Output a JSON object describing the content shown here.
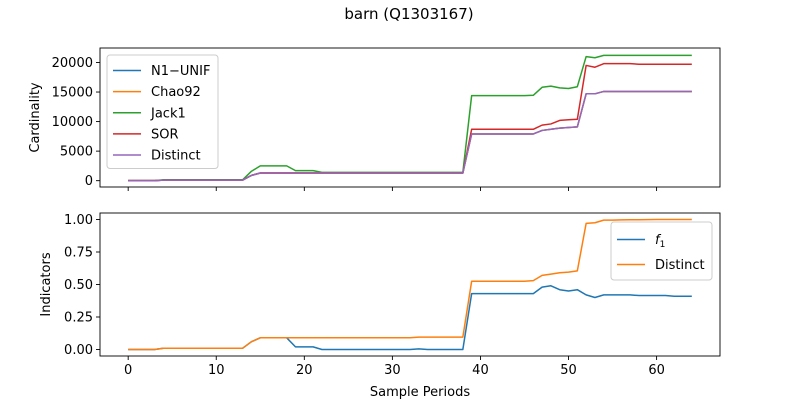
{
  "figure": {
    "title": "barn (Q1303167)"
  },
  "chart_data": [
    {
      "type": "line",
      "ylabel": "Cardinality",
      "xlabel": "",
      "xlim": [
        -3.2,
        67.2
      ],
      "ylim": [
        -1070,
        22450
      ],
      "xticks": [
        0,
        10,
        20,
        30,
        40,
        50,
        60
      ],
      "yticks": [
        0,
        5000,
        10000,
        15000,
        20000
      ],
      "grid": false,
      "legend_position": "top-left",
      "series": [
        {
          "name": "N1−UNIF",
          "color": "#1f77b4",
          "x": [
            0,
            1,
            2,
            3,
            4,
            5,
            6,
            7,
            8,
            9,
            10,
            11,
            12,
            13,
            14,
            15,
            16,
            17,
            18,
            19,
            20,
            21,
            22,
            23,
            24,
            25,
            26,
            27,
            28,
            29,
            30,
            31,
            32,
            33,
            34,
            35,
            36,
            37,
            38,
            39,
            40,
            41,
            42,
            43,
            44,
            45,
            46,
            47,
            48,
            49,
            50,
            51,
            52,
            53,
            54,
            55,
            56,
            57,
            58,
            59,
            60,
            61,
            62,
            63,
            64
          ],
          "values": [
            0,
            0,
            0,
            0,
            100,
            100,
            100,
            100,
            100,
            100,
            100,
            100,
            100,
            100,
            900,
            1300,
            1300,
            1300,
            1300,
            1300,
            1300,
            1300,
            1300,
            1300,
            1300,
            1300,
            1300,
            1300,
            1300,
            1300,
            1300,
            1300,
            1300,
            1300,
            1300,
            1300,
            1300,
            1300,
            1300,
            7900,
            7900,
            7900,
            7900,
            7900,
            7900,
            7900,
            7900,
            8500,
            8700,
            8900,
            9000,
            9100,
            14700,
            14700,
            15100,
            15100,
            15100,
            15100,
            15100,
            15100,
            15100,
            15100,
            15100,
            15100,
            15100
          ]
        },
        {
          "name": "Chao92",
          "color": "#ff7f0e",
          "x": [
            0,
            1,
            2,
            3,
            4,
            5,
            6,
            7,
            8,
            9,
            10,
            11,
            12,
            13,
            14,
            15,
            16,
            17,
            18,
            19,
            20,
            21,
            22,
            23,
            24,
            25,
            26,
            27,
            28,
            29,
            30,
            31,
            32,
            33,
            34,
            35,
            36,
            37,
            38,
            39,
            40,
            41,
            42,
            43,
            44,
            45,
            46,
            47,
            48,
            49,
            50,
            51,
            52,
            53,
            54,
            55,
            56,
            57,
            58,
            59,
            60,
            61,
            62,
            63,
            64
          ],
          "values": [
            0,
            0,
            0,
            0,
            100,
            100,
            100,
            100,
            100,
            100,
            100,
            100,
            100,
            100,
            900,
            1300,
            1300,
            1300,
            1300,
            1300,
            1300,
            1300,
            1300,
            1300,
            1300,
            1300,
            1300,
            1300,
            1300,
            1300,
            1300,
            1300,
            1300,
            1300,
            1300,
            1300,
            1300,
            1300,
            1300,
            7900,
            7900,
            7900,
            7900,
            7900,
            7900,
            7900,
            7900,
            8500,
            8700,
            8900,
            9000,
            9100,
            14700,
            14700,
            15100,
            15100,
            15100,
            15100,
            15100,
            15100,
            15100,
            15100,
            15100,
            15100,
            15100
          ]
        },
        {
          "name": "Jack1",
          "color": "#2ca02c",
          "x": [
            0,
            1,
            2,
            3,
            4,
            5,
            6,
            7,
            8,
            9,
            10,
            11,
            12,
            13,
            14,
            15,
            16,
            17,
            18,
            19,
            20,
            21,
            22,
            23,
            24,
            25,
            26,
            27,
            28,
            29,
            30,
            31,
            32,
            33,
            34,
            35,
            36,
            37,
            38,
            39,
            40,
            41,
            42,
            43,
            44,
            45,
            46,
            47,
            48,
            49,
            50,
            51,
            52,
            53,
            54,
            55,
            56,
            57,
            58,
            59,
            60,
            61,
            62,
            63,
            64
          ],
          "values": [
            0,
            0,
            0,
            0,
            150,
            150,
            150,
            150,
            150,
            150,
            150,
            150,
            150,
            150,
            1600,
            2500,
            2500,
            2500,
            2500,
            1700,
            1700,
            1700,
            1400,
            1400,
            1400,
            1400,
            1400,
            1400,
            1400,
            1400,
            1400,
            1400,
            1400,
            1400,
            1400,
            1400,
            1400,
            1400,
            1400,
            14400,
            14400,
            14400,
            14400,
            14400,
            14400,
            14400,
            14450,
            15800,
            16000,
            15700,
            15600,
            15900,
            21000,
            20800,
            21200,
            21200,
            21200,
            21200,
            21200,
            21200,
            21200,
            21200,
            21200,
            21200,
            21200
          ]
        },
        {
          "name": "SOR",
          "color": "#d62728",
          "x": [
            0,
            1,
            2,
            3,
            4,
            5,
            6,
            7,
            8,
            9,
            10,
            11,
            12,
            13,
            14,
            15,
            16,
            17,
            18,
            19,
            20,
            21,
            22,
            23,
            24,
            25,
            26,
            27,
            28,
            29,
            30,
            31,
            32,
            33,
            34,
            35,
            36,
            37,
            38,
            39,
            40,
            41,
            42,
            43,
            44,
            45,
            46,
            47,
            48,
            49,
            50,
            51,
            52,
            53,
            54,
            55,
            56,
            57,
            58,
            59,
            60,
            61,
            62,
            63,
            64
          ],
          "values": [
            0,
            0,
            0,
            0,
            100,
            100,
            100,
            100,
            100,
            100,
            100,
            100,
            100,
            100,
            900,
            1300,
            1300,
            1300,
            1300,
            1300,
            1300,
            1300,
            1300,
            1300,
            1300,
            1300,
            1300,
            1300,
            1300,
            1300,
            1300,
            1300,
            1300,
            1300,
            1300,
            1300,
            1300,
            1300,
            1300,
            8700,
            8700,
            8700,
            8700,
            8700,
            8700,
            8700,
            8700,
            9400,
            9600,
            10200,
            10300,
            10400,
            19500,
            19200,
            19800,
            19800,
            19800,
            19800,
            19700,
            19700,
            19700,
            19700,
            19700,
            19700,
            19700
          ]
        },
        {
          "name": "Distinct",
          "color": "#9467bd",
          "x": [
            0,
            1,
            2,
            3,
            4,
            5,
            6,
            7,
            8,
            9,
            10,
            11,
            12,
            13,
            14,
            15,
            16,
            17,
            18,
            19,
            20,
            21,
            22,
            23,
            24,
            25,
            26,
            27,
            28,
            29,
            30,
            31,
            32,
            33,
            34,
            35,
            36,
            37,
            38,
            39,
            40,
            41,
            42,
            43,
            44,
            45,
            46,
            47,
            48,
            49,
            50,
            51,
            52,
            53,
            54,
            55,
            56,
            57,
            58,
            59,
            60,
            61,
            62,
            63,
            64
          ],
          "values": [
            0,
            0,
            0,
            0,
            100,
            100,
            100,
            100,
            100,
            100,
            100,
            100,
            100,
            100,
            900,
            1300,
            1300,
            1300,
            1300,
            1300,
            1300,
            1300,
            1300,
            1300,
            1300,
            1300,
            1300,
            1300,
            1300,
            1300,
            1300,
            1300,
            1300,
            1300,
            1300,
            1300,
            1300,
            1300,
            1300,
            7900,
            7900,
            7900,
            7900,
            7900,
            7900,
            7900,
            7900,
            8500,
            8700,
            8900,
            9000,
            9100,
            14700,
            14700,
            15100,
            15100,
            15100,
            15100,
            15100,
            15100,
            15100,
            15100,
            15100,
            15100,
            15100
          ]
        }
      ]
    },
    {
      "type": "line",
      "ylabel": "Indicators",
      "xlabel": "Sample Periods",
      "xlim": [
        -3.2,
        67.2
      ],
      "ylim": [
        -0.05,
        1.05
      ],
      "xticks": [
        0,
        10,
        20,
        30,
        40,
        50,
        60
      ],
      "yticks": [
        0.0,
        0.25,
        0.5,
        0.75,
        1.0
      ],
      "ytick_labels": [
        "0.00",
        "0.25",
        "0.50",
        "0.75",
        "1.00"
      ],
      "xtick_labels": [
        "0",
        "10",
        "20",
        "30",
        "40",
        "50",
        "60"
      ],
      "grid": false,
      "legend_position": "top-right",
      "series": [
        {
          "name": "f1",
          "color": "#1f77b4",
          "x": [
            0,
            1,
            2,
            3,
            4,
            5,
            6,
            7,
            8,
            9,
            10,
            11,
            12,
            13,
            14,
            15,
            16,
            17,
            18,
            19,
            20,
            21,
            22,
            23,
            24,
            25,
            26,
            27,
            28,
            29,
            30,
            31,
            32,
            33,
            34,
            35,
            36,
            37,
            38,
            39,
            40,
            41,
            42,
            43,
            44,
            45,
            46,
            47,
            48,
            49,
            50,
            51,
            52,
            53,
            54,
            55,
            56,
            57,
            58,
            59,
            60,
            61,
            62,
            63,
            64
          ],
          "values": [
            0,
            0,
            0,
            0,
            0.01,
            0.01,
            0.01,
            0.01,
            0.01,
            0.01,
            0.01,
            0.01,
            0.01,
            0.01,
            0.06,
            0.09,
            0.09,
            0.09,
            0.09,
            0.02,
            0.02,
            0.02,
            0.0,
            0.0,
            0.0,
            0.0,
            0.0,
            0.0,
            0.0,
            0.0,
            0.0,
            0.0,
            0.0,
            0.005,
            0.0,
            0.0,
            0.0,
            0.0,
            0.0,
            0.43,
            0.43,
            0.43,
            0.43,
            0.43,
            0.43,
            0.43,
            0.43,
            0.48,
            0.49,
            0.46,
            0.45,
            0.46,
            0.42,
            0.4,
            0.42,
            0.42,
            0.42,
            0.42,
            0.415,
            0.415,
            0.415,
            0.415,
            0.41,
            0.41,
            0.41
          ]
        },
        {
          "name": "Distinct",
          "color": "#ff7f0e",
          "x": [
            0,
            1,
            2,
            3,
            4,
            5,
            6,
            7,
            8,
            9,
            10,
            11,
            12,
            13,
            14,
            15,
            16,
            17,
            18,
            19,
            20,
            21,
            22,
            23,
            24,
            25,
            26,
            27,
            28,
            29,
            30,
            31,
            32,
            33,
            34,
            35,
            36,
            37,
            38,
            39,
            40,
            41,
            42,
            43,
            44,
            45,
            46,
            47,
            48,
            49,
            50,
            51,
            52,
            53,
            54,
            55,
            56,
            57,
            58,
            59,
            60,
            61,
            62,
            63,
            64
          ],
          "values": [
            0,
            0,
            0,
            0,
            0.01,
            0.01,
            0.01,
            0.01,
            0.01,
            0.01,
            0.01,
            0.01,
            0.01,
            0.01,
            0.06,
            0.09,
            0.09,
            0.09,
            0.09,
            0.09,
            0.09,
            0.09,
            0.09,
            0.09,
            0.09,
            0.09,
            0.09,
            0.09,
            0.09,
            0.09,
            0.09,
            0.09,
            0.09,
            0.095,
            0.095,
            0.095,
            0.095,
            0.095,
            0.095,
            0.525,
            0.525,
            0.525,
            0.525,
            0.525,
            0.525,
            0.525,
            0.53,
            0.57,
            0.58,
            0.59,
            0.595,
            0.605,
            0.97,
            0.975,
            0.995,
            0.995,
            0.997,
            0.998,
            0.998,
            0.999,
            1.0,
            1.0,
            1.0,
            1.0,
            1.0
          ]
        }
      ]
    }
  ]
}
